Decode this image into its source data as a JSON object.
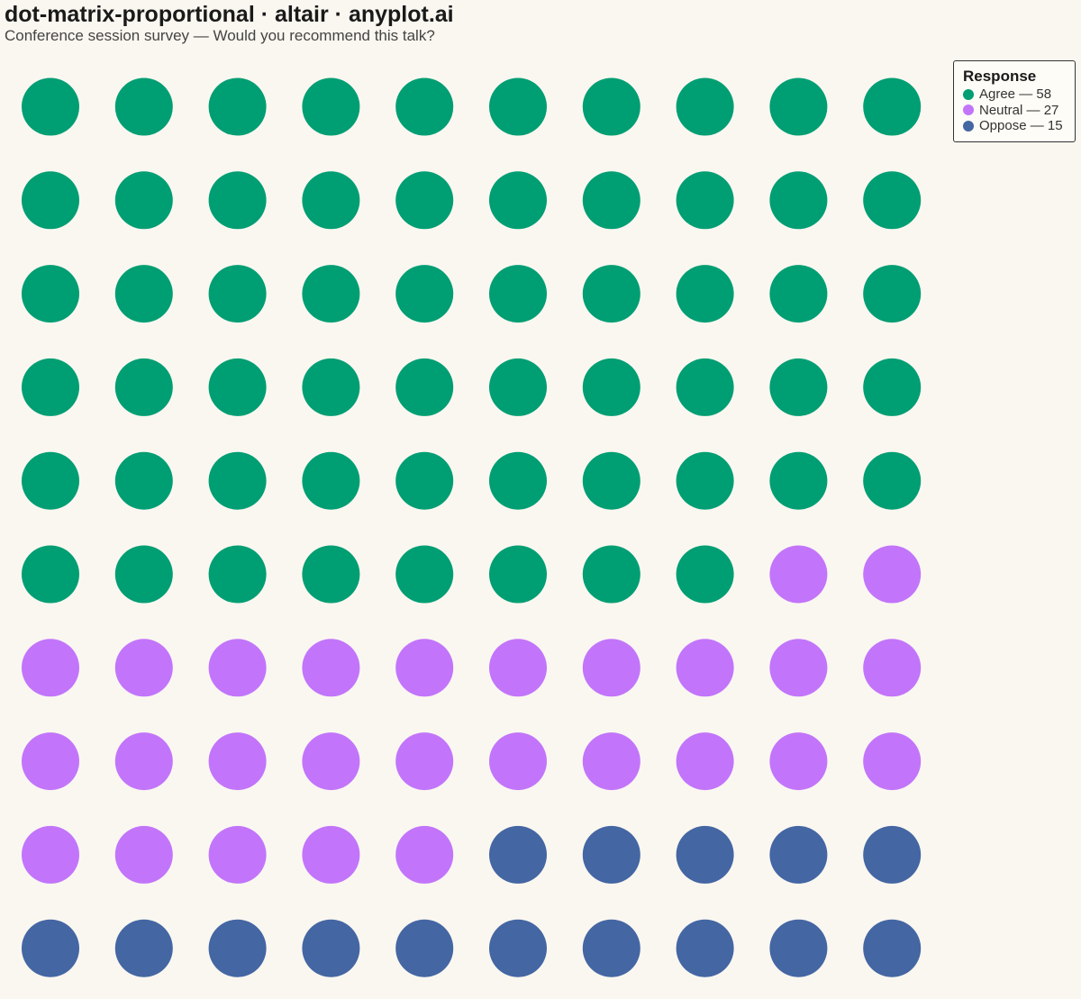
{
  "title": "dot-matrix-proportional · altair · anyplot.ai",
  "subtitle": "Conference session survey — Would you recommend this talk?",
  "chart_data": {
    "type": "dot-matrix",
    "rows": 10,
    "columns": 10,
    "legend_title": "Response",
    "legend_position": "top-right",
    "categories": [
      {
        "name": "Agree",
        "count": 58,
        "color": "#009e73",
        "label": "Agree — 58"
      },
      {
        "name": "Neutral",
        "count": 27,
        "color": "#c275fa",
        "label": "Neutral — 27"
      },
      {
        "name": "Oppose",
        "count": 15,
        "color": "#4466a3",
        "label": "Oppose — 15"
      }
    ]
  }
}
